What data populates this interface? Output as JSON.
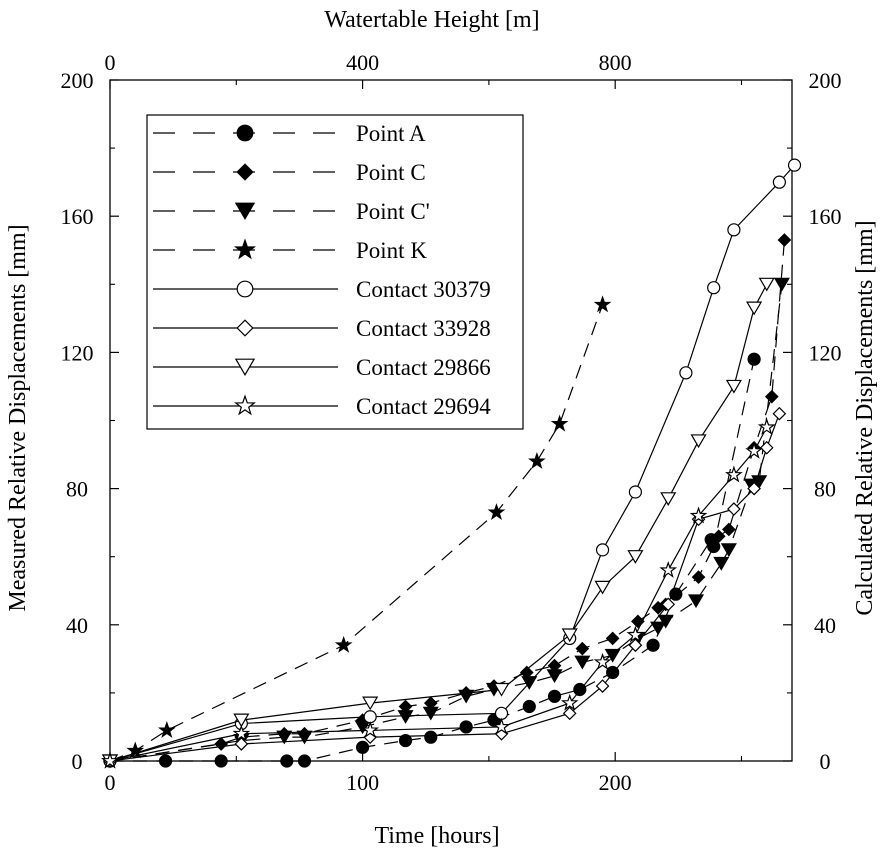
{
  "chart_data": {
    "type": "line",
    "x_axis": {
      "label": "Time [hours]",
      "range": [
        0,
        270
      ],
      "ticks": [
        0,
        100,
        200
      ]
    },
    "top_axis": {
      "label": "Watertable Height [m]",
      "range": [
        0,
        1080
      ],
      "ticks": [
        0,
        400,
        800
      ]
    },
    "y_axis": {
      "label": "Measured Relative Displacements [mm]",
      "range": [
        0,
        200
      ],
      "ticks": [
        0,
        40,
        80,
        120,
        160,
        200
      ]
    },
    "y2_axis": {
      "label": "Calculated Relative Displacements [mm]",
      "range": [
        0,
        200
      ],
      "ticks": [
        0,
        40,
        80,
        120,
        160,
        200
      ]
    },
    "grid": false,
    "legend_position": "top-left",
    "series": [
      {
        "name": "Point A",
        "line": "dashed",
        "marker": "filled-circle",
        "axis": "time",
        "points": [
          [
            0,
            0
          ],
          [
            22,
            0
          ],
          [
            44,
            0
          ],
          [
            70,
            0
          ],
          [
            77,
            0
          ],
          [
            100,
            4
          ],
          [
            117,
            6
          ],
          [
            127,
            7
          ],
          [
            141,
            10
          ],
          [
            152,
            12
          ],
          [
            166,
            16
          ],
          [
            176,
            19
          ],
          [
            186,
            21
          ],
          [
            199,
            26
          ],
          [
            215,
            34
          ],
          [
            224,
            49
          ],
          [
            238,
            65
          ],
          [
            239,
            63
          ],
          [
            255,
            118
          ]
        ]
      },
      {
        "name": "Point C",
        "line": "dashed",
        "marker": "filled-diamond",
        "axis": "time",
        "points": [
          [
            0,
            0
          ],
          [
            44,
            5
          ],
          [
            52,
            7
          ],
          [
            69,
            8
          ],
          [
            77,
            8
          ],
          [
            100,
            12
          ],
          [
            117,
            16
          ],
          [
            127,
            17
          ],
          [
            141,
            20
          ],
          [
            152,
            22
          ],
          [
            165,
            26
          ],
          [
            176,
            28
          ],
          [
            187,
            33
          ],
          [
            199,
            36
          ],
          [
            209,
            41
          ],
          [
            217,
            45
          ],
          [
            220,
            46
          ],
          [
            233,
            54
          ],
          [
            241,
            66
          ],
          [
            245,
            68
          ],
          [
            255,
            92
          ],
          [
            262,
            107
          ],
          [
            267,
            153
          ]
        ]
      },
      {
        "name": "Point C'",
        "line": "dashed",
        "marker": "filled-triangle-down",
        "axis": "time",
        "points": [
          [
            0,
            0
          ],
          [
            52,
            6
          ],
          [
            69,
            7
          ],
          [
            77,
            7
          ],
          [
            100,
            10
          ],
          [
            117,
            13
          ],
          [
            127,
            14
          ],
          [
            141,
            19
          ],
          [
            152,
            21
          ],
          [
            166,
            23
          ],
          [
            176,
            25
          ],
          [
            187,
            29
          ],
          [
            199,
            31
          ],
          [
            209,
            36
          ],
          [
            217,
            39
          ],
          [
            220,
            41
          ],
          [
            232,
            47
          ],
          [
            242,
            58
          ],
          [
            245,
            62
          ],
          [
            254,
            81
          ],
          [
            257,
            82
          ],
          [
            266,
            140
          ]
        ]
      },
      {
        "name": "Point K",
        "line": "dashed",
        "marker": "filled-star",
        "axis": "watertable",
        "points": [
          [
            0,
            0
          ],
          [
            40,
            3
          ],
          [
            90,
            9
          ],
          [
            370,
            34
          ],
          [
            612,
            73
          ],
          [
            676,
            88
          ],
          [
            712,
            99
          ],
          [
            780,
            134
          ]
        ]
      },
      {
        "name": "Contact 30379",
        "line": "solid",
        "marker": "open-circle",
        "axis": "time",
        "points": [
          [
            0,
            0
          ],
          [
            52,
            11
          ],
          [
            103,
            13
          ],
          [
            155,
            14
          ],
          [
            182,
            36
          ],
          [
            195,
            62
          ],
          [
            208,
            79
          ],
          [
            228,
            114
          ],
          [
            239,
            139
          ],
          [
            247,
            156
          ],
          [
            265,
            170
          ],
          [
            271,
            175
          ]
        ]
      },
      {
        "name": "Contact 33928",
        "line": "solid",
        "marker": "open-diamond",
        "axis": "time",
        "points": [
          [
            0,
            0
          ],
          [
            52,
            5
          ],
          [
            103,
            7
          ],
          [
            155,
            8
          ],
          [
            182,
            14
          ],
          [
            195,
            22
          ],
          [
            208,
            34
          ],
          [
            221,
            46
          ],
          [
            233,
            71
          ],
          [
            247,
            74
          ],
          [
            255,
            80
          ],
          [
            260,
            92
          ],
          [
            265,
            102
          ]
        ]
      },
      {
        "name": "Contact 29866",
        "line": "solid",
        "marker": "open-triangle-down",
        "axis": "time",
        "points": [
          [
            0,
            0
          ],
          [
            52,
            12
          ],
          [
            103,
            17
          ],
          [
            155,
            21
          ],
          [
            182,
            37
          ],
          [
            195,
            51
          ],
          [
            208,
            60
          ],
          [
            221,
            77
          ],
          [
            233,
            94
          ],
          [
            247,
            110
          ],
          [
            255,
            133
          ],
          [
            260,
            140
          ]
        ]
      },
      {
        "name": "Contact 29694",
        "line": "solid",
        "marker": "open-star",
        "axis": "time",
        "points": [
          [
            0,
            0
          ],
          [
            52,
            8
          ],
          [
            103,
            9
          ],
          [
            155,
            10
          ],
          [
            182,
            17
          ],
          [
            195,
            29
          ],
          [
            208,
            37
          ],
          [
            221,
            56
          ],
          [
            233,
            72
          ],
          [
            247,
            84
          ],
          [
            255,
            91
          ],
          [
            260,
            98
          ]
        ]
      }
    ]
  }
}
